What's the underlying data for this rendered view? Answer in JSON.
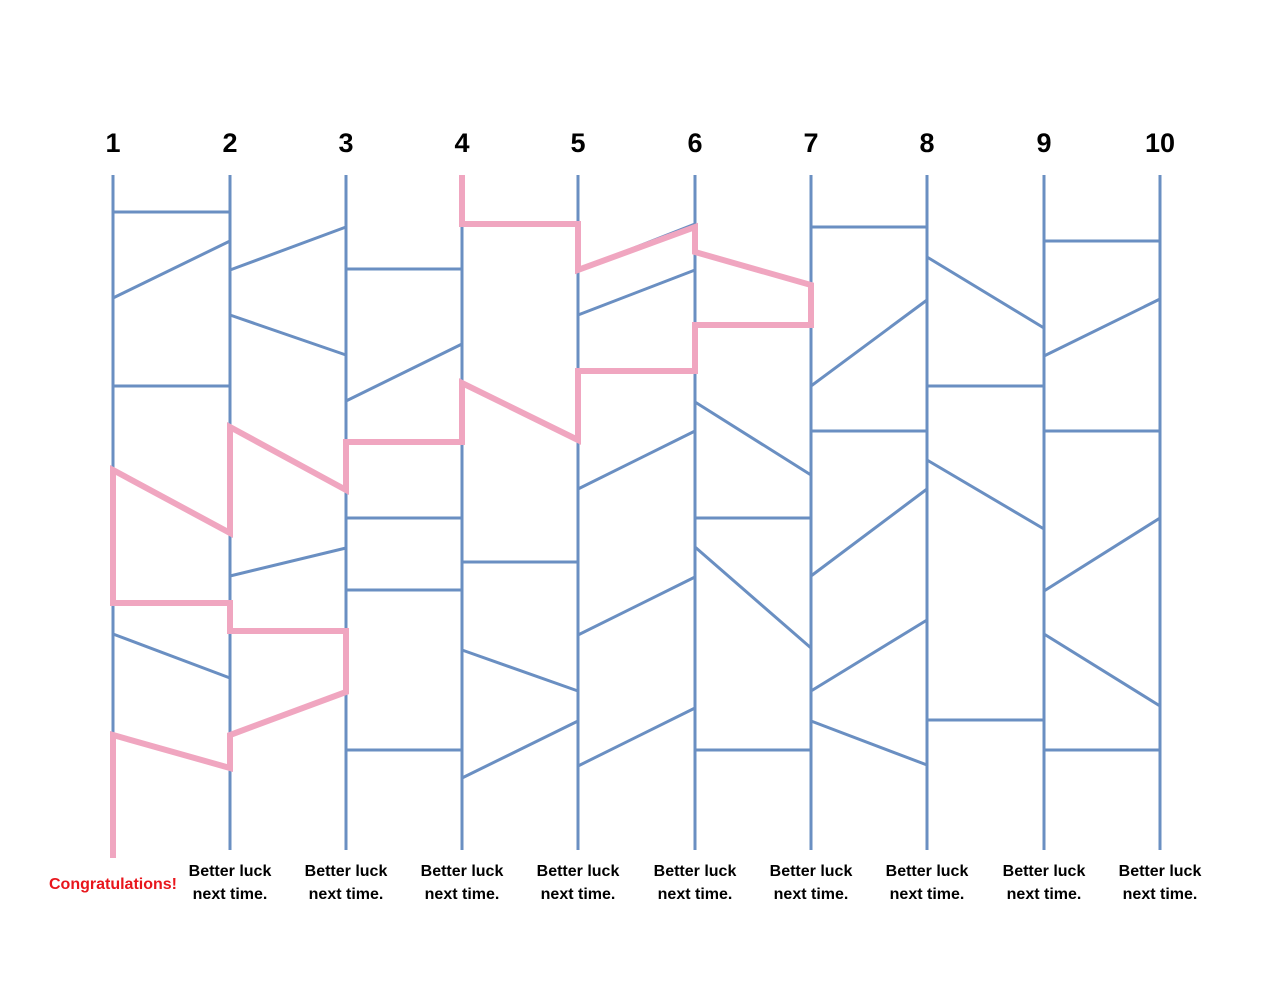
{
  "columns": [
    "1",
    "2",
    "3",
    "4",
    "5",
    "6",
    "7",
    "8",
    "9",
    "10"
  ],
  "results": [
    [
      "Congratulations!"
    ],
    [
      "Better luck",
      "next time."
    ],
    [
      "Better luck",
      "next time."
    ],
    [
      "Better luck",
      "next time."
    ],
    [
      "Better luck",
      "next time."
    ],
    [
      "Better luck",
      "next time."
    ],
    [
      "Better luck",
      "next time."
    ],
    [
      "Better luck",
      "next time."
    ],
    [
      "Better luck",
      "next time."
    ],
    [
      "Better luck",
      "next time."
    ]
  ],
  "colors": {
    "rail": "#6a8fc2",
    "path": "#f0a6c0",
    "number": "#000000",
    "winner_text": "#e8161c",
    "loser_text": "#000000"
  },
  "game": {
    "start_column": "4",
    "winning_column": "1"
  }
}
